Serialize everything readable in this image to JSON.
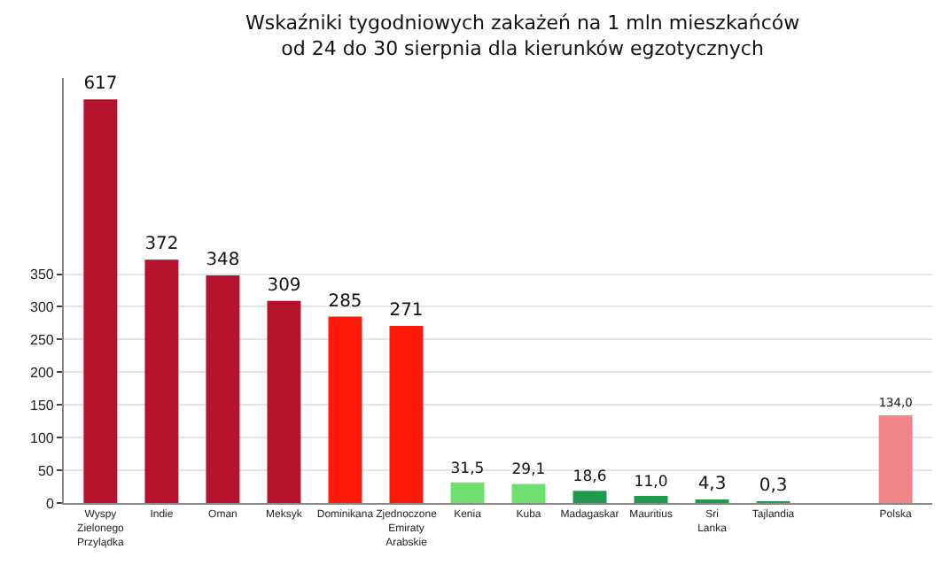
{
  "chart_data": {
    "type": "bar",
    "title": "Wskaźniki tygodniowych zakażeń na 1 mln mieszkańców\nod 24 do 30 sierpnia dla kierunków egzotycznych",
    "categories": [
      "Wyspy Zielonego Przylądka",
      "Indie",
      "Oman",
      "Meksyk",
      "Dominikana",
      "Zjednoczone Emiraty Arabskie",
      "Kenia",
      "Kuba",
      "Madagaskar",
      "Mauritius",
      "Sri Lanka",
      "Tajlandia",
      null,
      "Polska"
    ],
    "values": [
      617,
      372,
      348,
      309,
      285,
      271,
      31.5,
      29.1,
      18.6,
      11.0,
      4.3,
      0.3,
      null,
      134.0
    ],
    "value_labels": [
      "617",
      "372",
      "348",
      "309",
      "285",
      "271",
      "31,5",
      "29,1",
      "18,6",
      "11,0",
      "4,3",
      "0,3",
      null,
      "134,0"
    ],
    "colors": [
      "#b5122e",
      "#b5122e",
      "#b5122e",
      "#b5122e",
      "#ff1a0a",
      "#ff1a0a",
      "#6fe06f",
      "#6fe06f",
      "#1f9a4c",
      "#1f9a4c",
      "#1f9a4c",
      "#1f9a4c",
      "#ffffff",
      "#f28585"
    ],
    "ylim": [
      0,
      650
    ],
    "yticks": [
      0,
      50,
      100,
      150,
      200,
      250,
      300,
      350
    ],
    "grid": "y",
    "legend": false
  }
}
